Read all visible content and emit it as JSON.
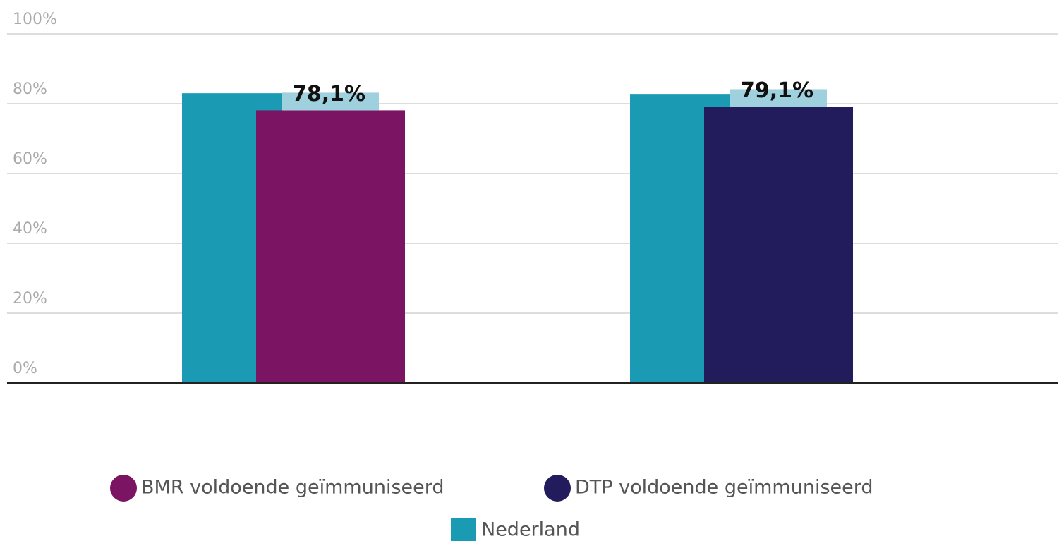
{
  "chart_data": {
    "type": "bar",
    "categories": [
      null,
      null
    ],
    "series": [
      {
        "name": "BMR voldoende geïmmuniseerd",
        "color": "#7b1463",
        "values": [
          78.1,
          null
        ],
        "value_labels": [
          "78,1%",
          null
        ]
      },
      {
        "name": "DTP voldoende geïmmuniseerd",
        "color": "#221c5c",
        "values": [
          null,
          79.1
        ],
        "value_labels": [
          null,
          "79,1%"
        ]
      },
      {
        "name": "Nederland",
        "color": "#1a9bb3",
        "values": [
          83,
          82.8
        ]
      }
    ],
    "ylim": [
      0,
      100
    ],
    "yticks": [
      {
        "value": 0,
        "label": "0%"
      },
      {
        "value": 20,
        "label": "20%"
      },
      {
        "value": 40,
        "label": "40%"
      },
      {
        "value": 60,
        "label": "60%"
      },
      {
        "value": 80,
        "label": "80%"
      },
      {
        "value": 100,
        "label": "100%"
      }
    ],
    "grid": true
  }
}
